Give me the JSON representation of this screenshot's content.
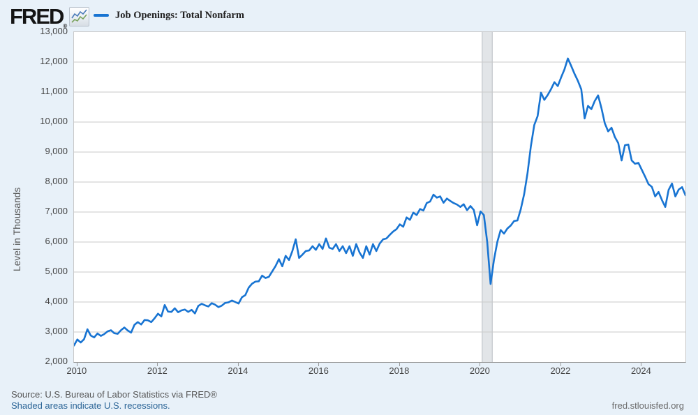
{
  "header": {
    "logo_text": "FRED",
    "logo_registered": "®",
    "legend_label": "Job Openings: Total Nonfarm"
  },
  "footer": {
    "source_line": "Source: U.S. Bureau of Labor Statistics via FRED®",
    "recession_note": "Shaded areas indicate U.S. recessions.",
    "site_link": "fred.stlouisfed.org"
  },
  "colors": {
    "line": "#1874d2",
    "page_background": "#e8f1f9",
    "plot_background": "#ffffff",
    "gridline": "#cacaca",
    "recession_fill": "#e2e5e8",
    "recession_edge": "#b8bdc3",
    "axis_text": "#444444",
    "link_blue": "#2a6496"
  },
  "chart_data": {
    "type": "line",
    "title": "Job Openings: Total Nonfarm",
    "xlabel": "",
    "ylabel": "Level in Thousands",
    "ylim": [
      2000,
      13000
    ],
    "y_tick_step": 1000,
    "y_ticks": [
      13000,
      12000,
      11000,
      10000,
      9000,
      8000,
      7000,
      6000,
      5000,
      4000,
      3000,
      2000
    ],
    "x_tick_years": [
      2010,
      2012,
      2014,
      2016,
      2018,
      2020,
      2022,
      2024
    ],
    "frequency": "monthly",
    "start_month": "2009-12",
    "end_month": "2025-02",
    "grid": true,
    "legend_position": "top-left",
    "recession_band": {
      "start": "2020-02",
      "end": "2020-04"
    },
    "series": [
      {
        "name": "Job Openings: Total Nonfarm",
        "units": "Level in Thousands",
        "values": [
          2550,
          2750,
          2650,
          2760,
          3090,
          2880,
          2820,
          2950,
          2870,
          2930,
          3020,
          3060,
          2960,
          2940,
          3060,
          3150,
          3050,
          2980,
          3240,
          3330,
          3250,
          3400,
          3390,
          3330,
          3460,
          3610,
          3520,
          3900,
          3680,
          3670,
          3790,
          3660,
          3720,
          3750,
          3670,
          3740,
          3620,
          3870,
          3940,
          3890,
          3850,
          3960,
          3910,
          3830,
          3880,
          3970,
          3990,
          4050,
          4000,
          3950,
          4160,
          4230,
          4480,
          4610,
          4680,
          4690,
          4880,
          4800,
          4840,
          5020,
          5200,
          5430,
          5190,
          5540,
          5400,
          5700,
          6090,
          5470,
          5580,
          5700,
          5720,
          5860,
          5740,
          5930,
          5770,
          6120,
          5810,
          5770,
          5930,
          5700,
          5860,
          5630,
          5860,
          5540,
          5930,
          5650,
          5470,
          5860,
          5580,
          5930,
          5700,
          5950,
          6090,
          6120,
          6240,
          6350,
          6430,
          6590,
          6510,
          6820,
          6740,
          6980,
          6900,
          7100,
          7050,
          7300,
          7350,
          7580,
          7480,
          7520,
          7310,
          7450,
          7370,
          7300,
          7250,
          7170,
          7260,
          7060,
          7200,
          7070,
          6560,
          7020,
          6900,
          6000,
          4600,
          5400,
          6000,
          6400,
          6280,
          6450,
          6550,
          6700,
          6720,
          7100,
          7600,
          8300,
          9200,
          9900,
          10200,
          10980,
          10740,
          10900,
          11100,
          11330,
          11200,
          11490,
          11760,
          12120,
          11870,
          11605,
          11370,
          11090,
          10120,
          10540,
          10430,
          10700,
          10890,
          10465,
          9960,
          9690,
          9810,
          9500,
          9300,
          8720,
          9230,
          9250,
          8720,
          8610,
          8640,
          8410,
          8180,
          7930,
          7840,
          7520,
          7670,
          7400,
          7170,
          7740,
          7950,
          7520,
          7750,
          7830,
          7560
        ]
      }
    ]
  }
}
